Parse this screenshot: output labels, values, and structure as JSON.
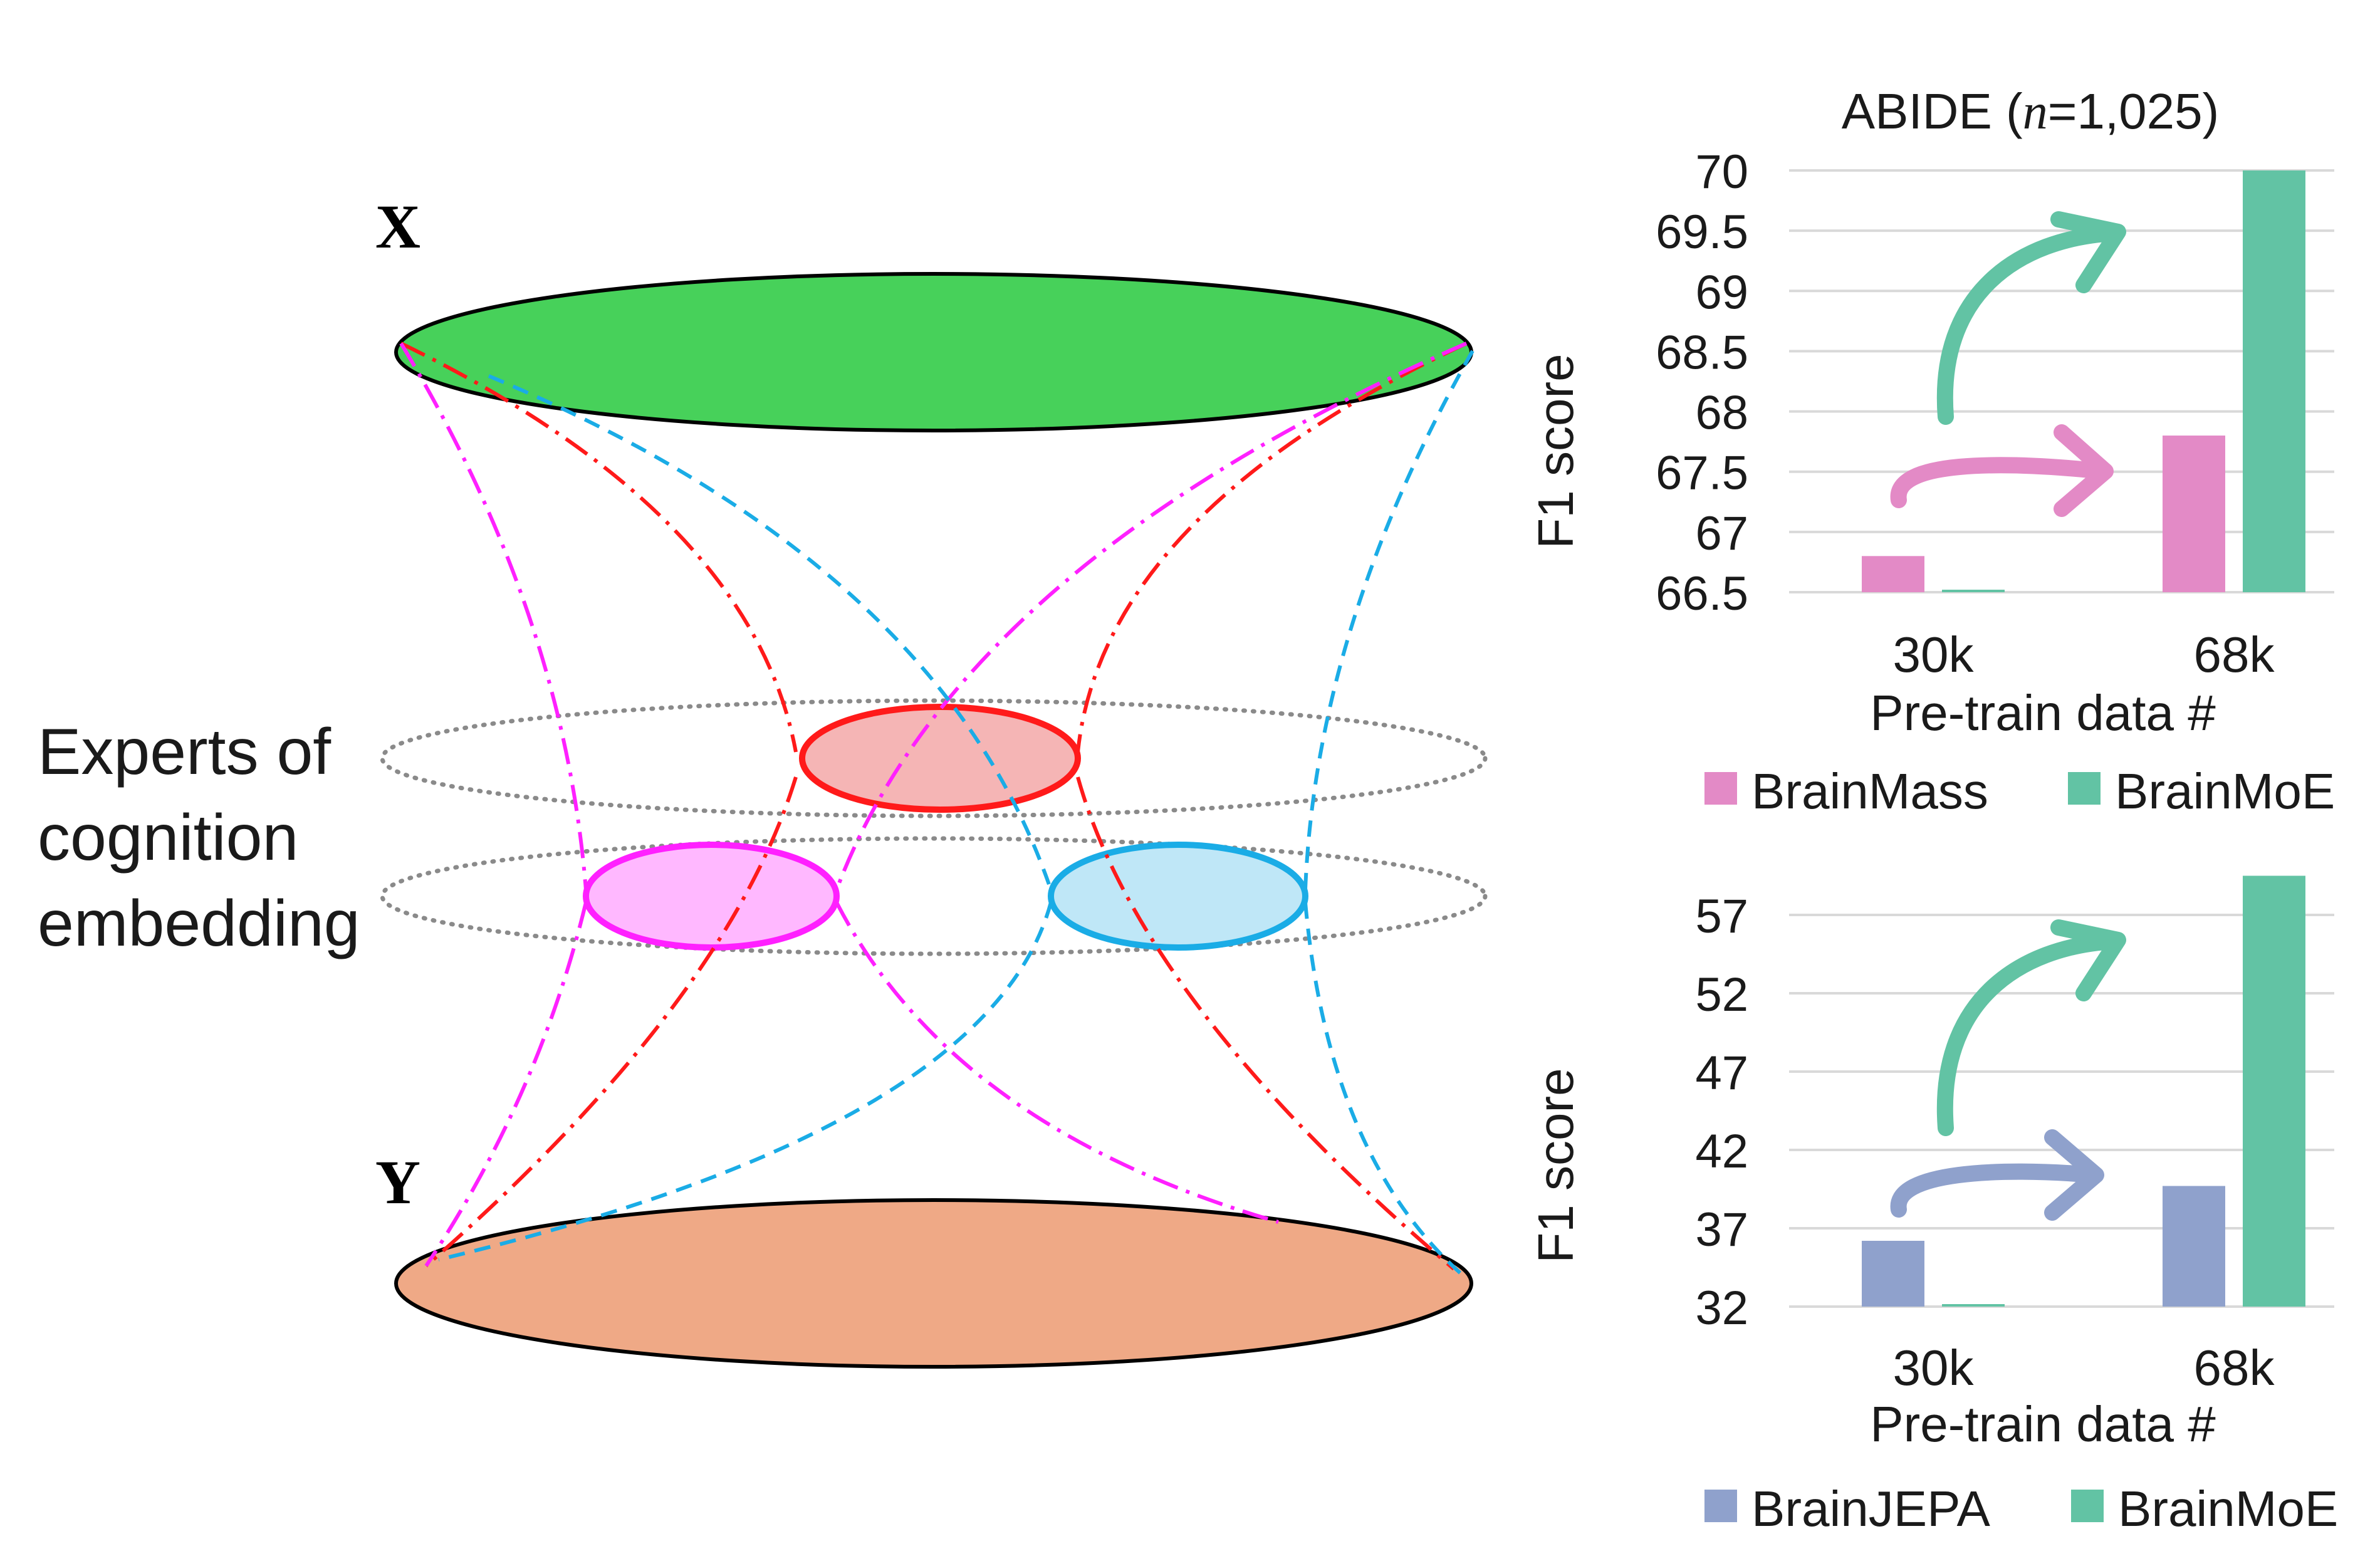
{
  "diagram": {
    "label_x": "X",
    "label_y": "Y",
    "experts_lines": [
      "Experts of",
      "cognition",
      "embedding"
    ],
    "colors": {
      "top_fill": "#47d15a",
      "bottom_fill": "#efa986",
      "red": "#ff1a1a",
      "red_fill": "#f5b5b5",
      "magenta": "#ff20ff",
      "magenta_fill": "#ffb8ff",
      "cyan": "#1aace6",
      "cyan_fill": "#bfe7f7",
      "gray": "#8a8a8a"
    }
  },
  "chart_data": [
    {
      "type": "bar",
      "title_prefix": "ABIDE (",
      "title_italic": "n",
      "title_suffix": "=1,025)",
      "ylabel": "F1 score",
      "xlabel": "Pre-train data #",
      "categories": [
        "30k",
        "68k"
      ],
      "ylim": [
        66.5,
        70
      ],
      "yticks": [
        "70",
        "69.5",
        "69",
        "68.5",
        "68",
        "67.5",
        "67",
        "66.5"
      ],
      "yticks_num": [
        70,
        69.5,
        69,
        68.5,
        68,
        67.5,
        67,
        66.5
      ],
      "grid": true,
      "legend_position": "bottom",
      "series": [
        {
          "name": "BrainMass",
          "values": [
            66.8,
            67.8
          ],
          "color": "#e38ac6"
        },
        {
          "name": "BrainMoE",
          "values": [
            66.5,
            70.0
          ],
          "color": "#62c3a4"
        }
      ]
    },
    {
      "type": "bar",
      "title": "",
      "ylabel": "F1 score",
      "xlabel": "Pre-train data #",
      "categories": [
        "30k",
        "68k"
      ],
      "ylim": [
        32,
        59
      ],
      "yticks": [
        "57",
        "52",
        "47",
        "42",
        "37",
        "32"
      ],
      "yticks_num": [
        57,
        52,
        47,
        42,
        37,
        32
      ],
      "grid": true,
      "legend_position": "bottom",
      "series": [
        {
          "name": "BrainJEPA",
          "values": [
            36.2,
            39.7
          ],
          "color": "#8fa1cc"
        },
        {
          "name": "BrainMoE",
          "values": [
            32.0,
            59.5
          ],
          "color": "#62c3a4"
        }
      ]
    }
  ]
}
